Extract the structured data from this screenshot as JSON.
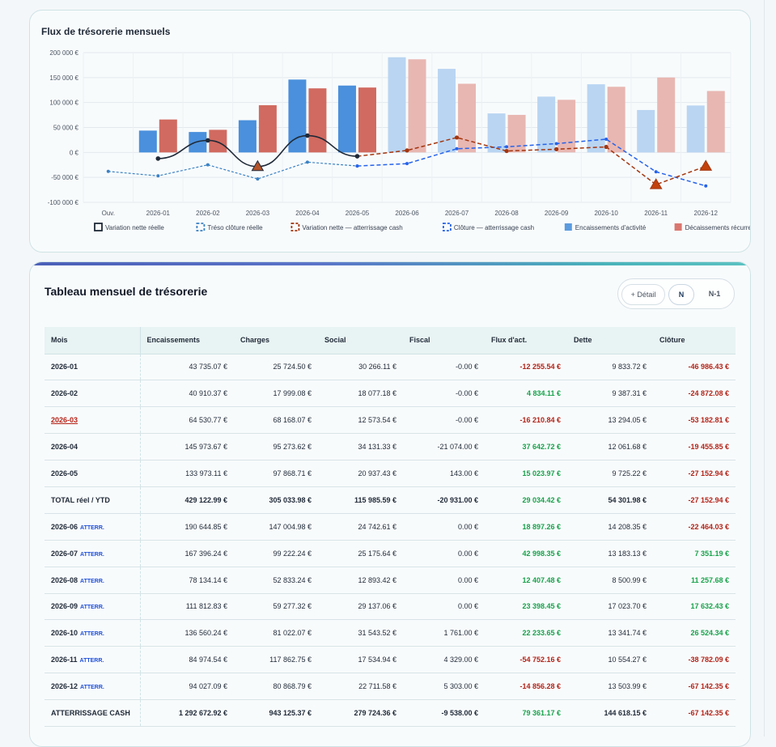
{
  "chart_card": {
    "title": "Flux de trésorerie mensuels"
  },
  "chart_data": {
    "type": "bar",
    "title": "Flux de trésorerie mensuels",
    "categories": [
      "Ouv.",
      "2026-01",
      "2026-02",
      "2026-03",
      "2026-04",
      "2026-05",
      "2026-06",
      "2026-07",
      "2026-08",
      "2026-09",
      "2026-10",
      "2026-11",
      "2026-12"
    ],
    "ylim": [
      -100000,
      200000
    ],
    "yticks": [
      {
        "v": 200000,
        "label": "200 000 €"
      },
      {
        "v": 150000,
        "label": "150 000 €"
      },
      {
        "v": 100000,
        "label": "100 000 €"
      },
      {
        "v": 50000,
        "label": "50 000 €"
      },
      {
        "v": 0,
        "label": "0 €"
      },
      {
        "v": -50000,
        "label": "-50 000 €"
      },
      {
        "v": -100000,
        "label": "-100 000 €"
      }
    ],
    "grid": true,
    "legend_position": "bottom",
    "bars": {
      "encaissements": [
        null,
        43735.07,
        40910.37,
        64530.77,
        145973.67,
        133973.11,
        190644.85,
        167396.24,
        78134.14,
        111812.83,
        136560.24,
        84974.54,
        94027.09
      ],
      "decaissements": [
        null,
        65972.19,
        45297.42,
        94571.07,
        128352.86,
        130016.06,
        186647.59,
        137580.29,
        75231.14,
        105413.68,
        131526.5,
        150152.03,
        123055.03
      ]
    },
    "forecast_from_index": 6,
    "series": [
      {
        "name": "Variation nette réelle",
        "color": "#1f2937",
        "values": [
          null,
          -12255.54,
          24114.35,
          -28310.75,
          33727.29,
          -7697.22,
          null,
          null,
          null,
          null,
          null,
          null,
          null
        ]
      },
      {
        "name": "Tréso clôture réelle",
        "color": "#3b82c4",
        "values": [
          -38000,
          -46986.43,
          -24872.08,
          -53182.81,
          -19455.85,
          -27152.94,
          null,
          null,
          null,
          null,
          null,
          null,
          null
        ]
      },
      {
        "name": "Variation nette — atterrissage cash",
        "color": "#a3360f",
        "values": [
          null,
          null,
          null,
          null,
          null,
          -7697.22,
          3997.26,
          29815.96,
          2903.0,
          6399.15,
          11033.74,
          -64560.91,
          -27613.41
        ]
      },
      {
        "name": "Clôture — atterrissage cash",
        "color": "#2563eb",
        "values": [
          null,
          null,
          null,
          null,
          null,
          -27152.94,
          -22464.03,
          7351.19,
          11257.68,
          17632.43,
          26524.34,
          -38782.09,
          -67142.35
        ]
      }
    ],
    "legend": [
      {
        "label": "Variation nette réelle",
        "style": "box-solid",
        "color": "#1f2937"
      },
      {
        "label": "Tréso clôture réelle",
        "style": "box-dashed",
        "color": "#3b82c4"
      },
      {
        "label": "Variation nette — atterrissage cash",
        "style": "box-dashed",
        "color": "#a3360f"
      },
      {
        "label": "Clôture — atterrissage cash",
        "style": "box-dashed",
        "color": "#2563eb"
      },
      {
        "label": "Encaissements d'activité",
        "style": "fill",
        "color": "#5b9bdf"
      },
      {
        "label": "Décaissements récurrents",
        "style": "fill",
        "color": "#d9776f"
      }
    ],
    "colors": {
      "enc": "#4a90dc",
      "enc_forecast": "#b9d5f2",
      "dec": "#d16a60",
      "dec_forecast": "#e8b7b2"
    }
  },
  "table_card": {
    "title": "Tableau mensuel de trésorerie",
    "buttons": {
      "detail": "+ Détail",
      "n": "N",
      "n1": "N-1"
    },
    "columns": [
      "Mois",
      "Encaissements",
      "Charges",
      "Social",
      "Fiscal",
      "Flux d'act.",
      "Dette",
      "Clôture"
    ],
    "tag_label": "ATTERR.",
    "rows": [
      {
        "mois": "2026-01",
        "enc": "43 735.07 €",
        "charges": "25 724.50 €",
        "social": "30 266.11 €",
        "fiscal": "-0.00 €",
        "flux": "-12 255.54 €",
        "dette": "9 833.72 €",
        "cloture": "-46 986.43 €",
        "flux_sign": "neg",
        "cloture_sign": "neg"
      },
      {
        "mois": "2026-02",
        "enc": "40 910.37 €",
        "charges": "17 999.08 €",
        "social": "18 077.18 €",
        "fiscal": "-0.00 €",
        "flux": "4 834.11 €",
        "dette": "9 387.31 €",
        "cloture": "-24 872.08 €",
        "flux_sign": "pos",
        "cloture_sign": "neg"
      },
      {
        "mois": "2026-03",
        "enc": "64 530.77 €",
        "charges": "68 168.07 €",
        "social": "12 573.54 €",
        "fiscal": "-0.00 €",
        "flux": "-16 210.84 €",
        "dette": "13 294.05 €",
        "cloture": "-53 182.81 €",
        "flux_sign": "neg",
        "cloture_sign": "neg",
        "alert": true
      },
      {
        "mois": "2026-04",
        "enc": "145 973.67 €",
        "charges": "95 273.62 €",
        "social": "34 131.33 €",
        "fiscal": "-21 074.00 €",
        "flux": "37 642.72 €",
        "dette": "12 061.68 €",
        "cloture": "-19 455.85 €",
        "flux_sign": "pos",
        "cloture_sign": "neg"
      },
      {
        "mois": "2026-05",
        "enc": "133 973.11 €",
        "charges": "97 868.71 €",
        "social": "20 937.43 €",
        "fiscal": "143.00 €",
        "flux": "15 023.97 €",
        "dette": "9 725.22 €",
        "cloture": "-27 152.94 €",
        "flux_sign": "pos",
        "cloture_sign": "neg"
      },
      {
        "mois": "TOTAL réel / YTD",
        "enc": "429 122.99 €",
        "charges": "305 033.98 €",
        "social": "115 985.59 €",
        "fiscal": "-20 931.00 €",
        "flux": "29 034.42 €",
        "dette": "54 301.98 €",
        "cloture": "-27 152.94 €",
        "flux_sign": "pos",
        "cloture_sign": "neg",
        "total": true
      },
      {
        "mois": "2026-06",
        "enc": "190 644.85 €",
        "charges": "147 004.98 €",
        "social": "24 742.61 €",
        "fiscal": "0.00 €",
        "flux": "18 897.26 €",
        "dette": "14 208.35 €",
        "cloture": "-22 464.03 €",
        "flux_sign": "pos",
        "cloture_sign": "neg",
        "forecast": true
      },
      {
        "mois": "2026-07",
        "enc": "167 396.24 €",
        "charges": "99 222.24 €",
        "social": "25 175.64 €",
        "fiscal": "0.00 €",
        "flux": "42 998.35 €",
        "dette": "13 183.13 €",
        "cloture": "7 351.19 €",
        "flux_sign": "pos",
        "cloture_sign": "pos",
        "forecast": true
      },
      {
        "mois": "2026-08",
        "enc": "78 134.14 €",
        "charges": "52 833.24 €",
        "social": "12 893.42 €",
        "fiscal": "0.00 €",
        "flux": "12 407.48 €",
        "dette": "8 500.99 €",
        "cloture": "11 257.68 €",
        "flux_sign": "pos",
        "cloture_sign": "pos",
        "forecast": true
      },
      {
        "mois": "2026-09",
        "enc": "111 812.83 €",
        "charges": "59 277.32 €",
        "social": "29 137.06 €",
        "fiscal": "0.00 €",
        "flux": "23 398.45 €",
        "dette": "17 023.70 €",
        "cloture": "17 632.43 €",
        "flux_sign": "pos",
        "cloture_sign": "pos",
        "forecast": true
      },
      {
        "mois": "2026-10",
        "enc": "136 560.24 €",
        "charges": "81 022.07 €",
        "social": "31 543.52 €",
        "fiscal": "1 761.00 €",
        "flux": "22 233.65 €",
        "dette": "13 341.74 €",
        "cloture": "26 524.34 €",
        "flux_sign": "pos",
        "cloture_sign": "pos",
        "forecast": true
      },
      {
        "mois": "2026-11",
        "enc": "84 974.54 €",
        "charges": "117 862.75 €",
        "social": "17 534.94 €",
        "fiscal": "4 329.00 €",
        "flux": "-54 752.16 €",
        "dette": "10 554.27 €",
        "cloture": "-38 782.09 €",
        "flux_sign": "neg",
        "cloture_sign": "neg",
        "forecast": true
      },
      {
        "mois": "2026-12",
        "enc": "94 027.09 €",
        "charges": "80 868.79 €",
        "social": "22 711.58 €",
        "fiscal": "5 303.00 €",
        "flux": "-14 856.28 €",
        "dette": "13 503.99 €",
        "cloture": "-67 142.35 €",
        "flux_sign": "neg",
        "cloture_sign": "neg",
        "forecast": true
      },
      {
        "mois": "ATTERRISSAGE CASH",
        "enc": "1 292 672.92 €",
        "charges": "943 125.37 €",
        "social": "279 724.36 €",
        "fiscal": "-9 538.00 €",
        "flux": "79 361.17 €",
        "dette": "144 618.15 €",
        "cloture": "-67 142.35 €",
        "flux_sign": "pos",
        "cloture_sign": "neg",
        "total": true
      }
    ]
  }
}
